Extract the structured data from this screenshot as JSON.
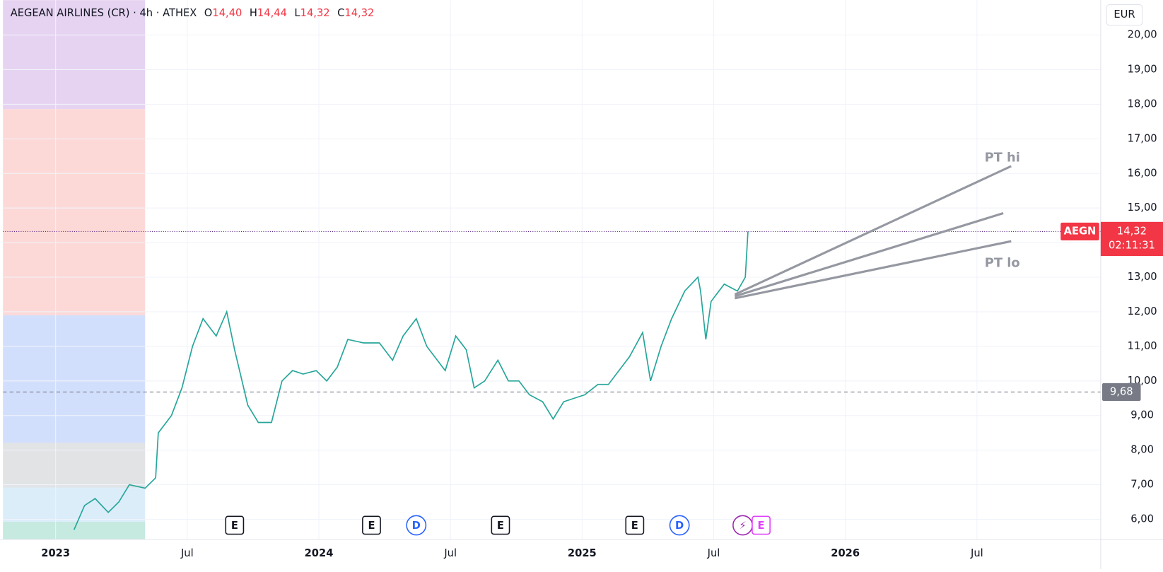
{
  "header": {
    "symbol": "AEGEAN AIRLINES (CR) · 4h · ATHEX",
    "ohlc": [
      {
        "key": "O",
        "value": "14,40"
      },
      {
        "key": "H",
        "value": "14,44"
      },
      {
        "key": "L",
        "value": "14,32"
      },
      {
        "key": "C",
        "value": "14,32"
      }
    ],
    "currency": "EUR"
  },
  "chart_data": {
    "type": "line",
    "color": "#26a69a",
    "x": [
      2023.07,
      2023.11,
      2023.15,
      2023.2,
      2023.24,
      2023.28,
      2023.34,
      2023.38,
      2023.39,
      2023.44,
      2023.48,
      2023.52,
      2023.56,
      2023.61,
      2023.65,
      2023.68,
      2023.73,
      2023.77,
      2023.82,
      2023.86,
      2023.9,
      2023.94,
      2023.99,
      2024.03,
      2024.07,
      2024.11,
      2024.17,
      2024.23,
      2024.28,
      2024.32,
      2024.37,
      2024.41,
      2024.45,
      2024.48,
      2024.52,
      2024.56,
      2024.59,
      2024.63,
      2024.68,
      2024.72,
      2024.76,
      2024.8,
      2024.85,
      2024.89,
      2024.93,
      2024.97,
      2025.01,
      2025.06,
      2025.1,
      2025.14,
      2025.18,
      2025.23,
      2025.26,
      2025.3,
      2025.34,
      2025.39,
      2025.44,
      2025.45,
      2025.47,
      2025.49,
      2025.54,
      2025.59,
      2025.62,
      2025.63
    ],
    "values": [
      5.7,
      6.4,
      6.6,
      6.2,
      6.5,
      7.0,
      6.9,
      7.2,
      8.5,
      9.0,
      9.8,
      11.0,
      11.8,
      11.3,
      12.0,
      10.9,
      9.3,
      8.8,
      8.8,
      10.0,
      10.3,
      10.2,
      10.3,
      10.0,
      10.4,
      11.2,
      11.1,
      11.1,
      10.6,
      11.3,
      11.8,
      11.0,
      10.6,
      10.3,
      11.3,
      10.9,
      9.8,
      10.0,
      10.6,
      10.0,
      10.0,
      9.6,
      9.4,
      8.9,
      9.4,
      9.5,
      9.6,
      9.9,
      9.9,
      10.3,
      10.7,
      11.4,
      10.0,
      11.0,
      11.8,
      12.6,
      13.0,
      12.6,
      11.2,
      12.3,
      12.8,
      12.6,
      13.0,
      14.32
    ],
    "xlim": [
      2022.8,
      2026.97
    ],
    "ylim": [
      5.42,
      21.01
    ],
    "xticks": [
      {
        "value": 2023,
        "label": "2023"
      },
      {
        "value": 2023.5,
        "label": "Jul"
      },
      {
        "value": 2024,
        "label": "2024"
      },
      {
        "value": 2024.5,
        "label": "Jul"
      },
      {
        "value": 2025,
        "label": "2025"
      },
      {
        "value": 2025.5,
        "label": "Jul"
      },
      {
        "value": 2026,
        "label": "2026"
      },
      {
        "value": 2026.5,
        "label": "Jul"
      }
    ],
    "yticks": [
      {
        "value": 6,
        "label": "6,00"
      },
      {
        "value": 7,
        "label": "7,00"
      },
      {
        "value": 8,
        "label": "8,00"
      },
      {
        "value": 9,
        "label": "9,00"
      },
      {
        "value": 10,
        "label": "10,00"
      },
      {
        "value": 11,
        "label": "11,00"
      },
      {
        "value": 12,
        "label": "12,00"
      },
      {
        "value": 13,
        "label": "13,00"
      },
      {
        "value": 14,
        "label": "14,00"
      },
      {
        "value": 15,
        "label": "15,00"
      },
      {
        "value": 16,
        "label": "16,00"
      },
      {
        "value": 17,
        "label": "17,00"
      },
      {
        "value": 18,
        "label": "18,00"
      },
      {
        "value": 19,
        "label": "19,00"
      },
      {
        "value": 20,
        "label": "20,00"
      }
    ],
    "grid": true,
    "zones": [
      {
        "from": 21.01,
        "to": 17.86,
        "color": "#e6d3f1"
      },
      {
        "from": 17.86,
        "to": 11.9,
        "color": "#fcd9d7"
      },
      {
        "from": 11.9,
        "to": 8.21,
        "color": "#d2dffc"
      },
      {
        "from": 8.21,
        "to": 6.92,
        "color": "#e2e3e5"
      },
      {
        "from": 6.92,
        "to": 5.93,
        "color": "#dcedfa"
      },
      {
        "from": 5.93,
        "to": 5.42,
        "color": "#c6e9e0"
      }
    ],
    "zone_end": 2023.34,
    "last_price": {
      "value": 14.32,
      "label": "14,32",
      "symbol": "AEGN",
      "countdown": "02:11:31",
      "color": "#f23645"
    },
    "level": {
      "value": 9.68,
      "label": "9,68",
      "color": "#787b86"
    },
    "projections": [
      {
        "x": [
          2025.58,
          2026.63
        ],
        "y": [
          12.5,
          16.21
        ],
        "label": "PT hi"
      },
      {
        "x": [
          2025.58,
          2026.6
        ],
        "y": [
          12.45,
          14.85
        ]
      },
      {
        "x": [
          2025.58,
          2026.63
        ],
        "y": [
          12.39,
          14.04
        ],
        "label": "PT lo"
      }
    ],
    "events": [
      {
        "label": "E",
        "x": 2023.68,
        "color": "#131722"
      },
      {
        "label": "E",
        "x": 2024.2,
        "color": "#131722"
      },
      {
        "label": "D",
        "x": 2024.37,
        "color": "#2962ff"
      },
      {
        "label": "E",
        "x": 2024.69,
        "color": "#131722"
      },
      {
        "label": "E",
        "x": 2025.2,
        "color": "#131722"
      },
      {
        "label": "D",
        "x": 2025.37,
        "color": "#2962ff"
      },
      {
        "label": "⚡",
        "x": 2025.61,
        "color": "#9c27b0"
      },
      {
        "label": "E",
        "x": 2025.68,
        "color": "#e040fb"
      }
    ]
  }
}
